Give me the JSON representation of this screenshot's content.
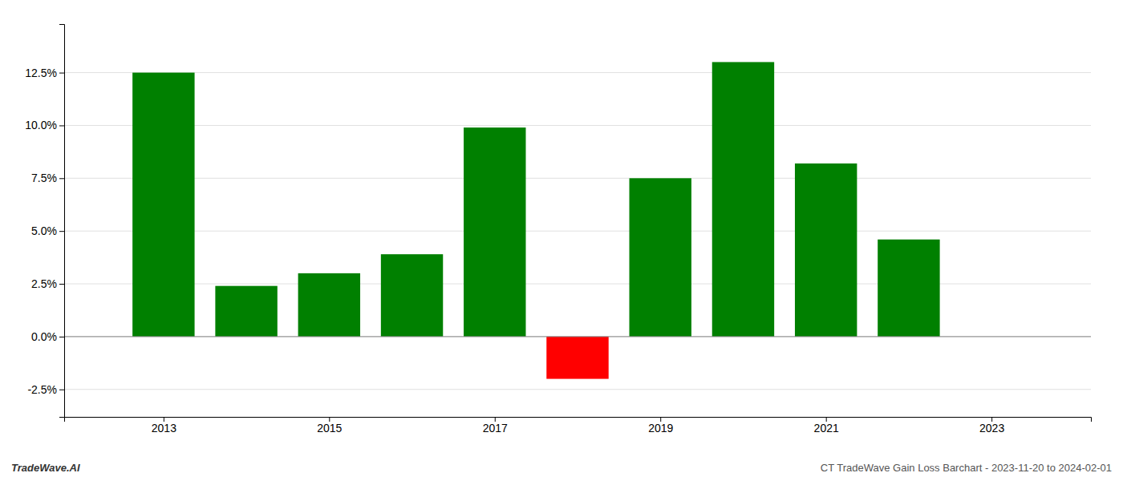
{
  "chart_data": {
    "type": "bar",
    "x": [
      2013,
      2014,
      2015,
      2016,
      2017,
      2018,
      2019,
      2020,
      2021,
      2022
    ],
    "values": [
      0.125,
      0.024,
      0.03,
      0.039,
      0.099,
      -0.02,
      0.075,
      0.13,
      0.082,
      0.046
    ],
    "colors": [
      "#008000",
      "#008000",
      "#008000",
      "#008000",
      "#008000",
      "#ff0000",
      "#008000",
      "#008000",
      "#008000",
      "#008000"
    ],
    "xlim": [
      2011.8,
      2024.2
    ],
    "xticks": [
      2013,
      2015,
      2017,
      2019,
      2021,
      2023
    ],
    "ylim": [
      -0.038,
      0.148
    ],
    "yticks": [
      {
        "value": -0.025,
        "label": "-2.5%"
      },
      {
        "value": 0.0,
        "label": "0.0%"
      },
      {
        "value": 0.025,
        "label": "2.5%"
      },
      {
        "value": 0.05,
        "label": "5.0%"
      },
      {
        "value": 0.075,
        "label": "7.5%"
      },
      {
        "value": 0.1,
        "label": "10.0%"
      },
      {
        "value": 0.125,
        "label": "12.5%"
      }
    ],
    "grid": true,
    "annotations": [
      "TradeWave.AI",
      "CT TradeWave Gain Loss Barchart - 2023-11-20 to 2024-02-01"
    ]
  }
}
